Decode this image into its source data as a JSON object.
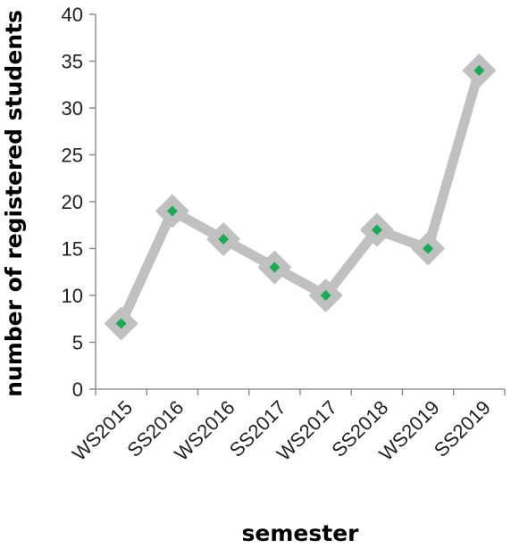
{
  "chart_data": {
    "type": "line",
    "categories": [
      "WS2015",
      "SS2016",
      "WS2016",
      "SS2017",
      "WS2017",
      "SS2018",
      "WS2019",
      "SS2019"
    ],
    "series": [
      {
        "values": [
          7,
          19,
          16,
          13,
          10,
          17,
          15,
          34
        ]
      }
    ],
    "title": "",
    "xlabel": "semester",
    "ylabel": "number of registered students",
    "ylim": [
      0,
      40
    ],
    "yticks": [
      0,
      5,
      10,
      15,
      20,
      25,
      30,
      35,
      40
    ],
    "grid": false,
    "legend": "none",
    "colors": {
      "line": "#c0c0c0",
      "marker": "#1aaa55",
      "axis": "#808080"
    }
  }
}
